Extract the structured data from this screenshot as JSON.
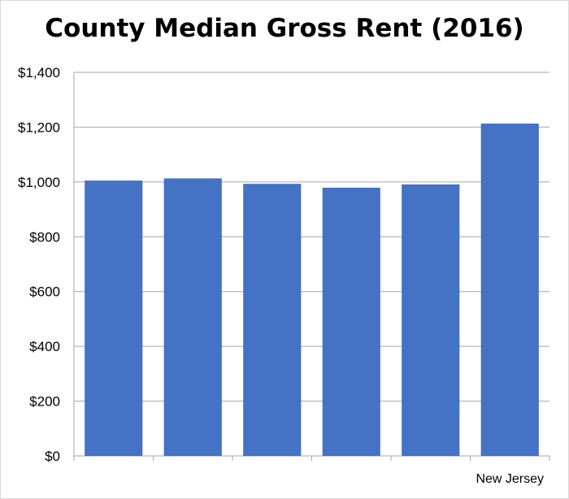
{
  "chart_data": {
    "type": "bar",
    "title": "County Median Gross Rent (2016)",
    "categories": [
      "",
      "",
      "",
      "",
      "",
      "New Jersey"
    ],
    "values": [
      1005,
      1013,
      993,
      979,
      991,
      1213
    ],
    "yticks": [
      "$0",
      "$200",
      "$400",
      "$600",
      "$800",
      "$1,000",
      "$1,200",
      "$1,400"
    ],
    "ylim": [
      0,
      1400
    ],
    "ytick_step": 200,
    "grid": true,
    "legend": "none",
    "bar_color": "#4472c4",
    "grid_color": "#a6a6a6",
    "axis_color": "#a6a6a6"
  }
}
